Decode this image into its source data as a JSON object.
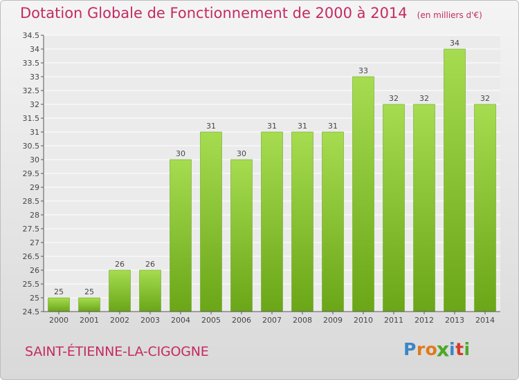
{
  "header": {
    "title": "Dotation Globale de Fonctionnement de 2000 à 2014",
    "subtitle": "(en milliers d'€)"
  },
  "footer": {
    "place": "SAINT-ÉTIENNE-LA-CIGOGNE",
    "logo_text": "Proxiti"
  },
  "colors": {
    "title": "#c42a62",
    "bar_light": "#a6dc50",
    "bar_dark": "#6aa617",
    "logo": [
      "#3a86c8",
      "#e07a1a",
      "#e07a1a",
      "#4aa82b",
      "#3a86c8",
      "#d63a2a",
      "#4aa82b"
    ]
  },
  "chart_data": {
    "type": "bar",
    "categories": [
      "2000",
      "2001",
      "2002",
      "2003",
      "2004",
      "2005",
      "2006",
      "2007",
      "2008",
      "2009",
      "2010",
      "2011",
      "2012",
      "2013",
      "2014"
    ],
    "values": [
      25,
      25,
      26,
      26,
      30,
      31,
      30,
      31,
      31,
      31,
      33,
      32,
      32,
      34,
      32
    ],
    "ylim": [
      24.5,
      34.5
    ],
    "yticks": [
      "24.5",
      "25",
      "25.5",
      "26",
      "26.5",
      "27",
      "27.5",
      "28",
      "28.5",
      "29",
      "29.5",
      "30",
      "30.5",
      "31",
      "31.5",
      "32",
      "32.5",
      "33",
      "33.5",
      "34",
      "34.5"
    ],
    "grid": true
  }
}
